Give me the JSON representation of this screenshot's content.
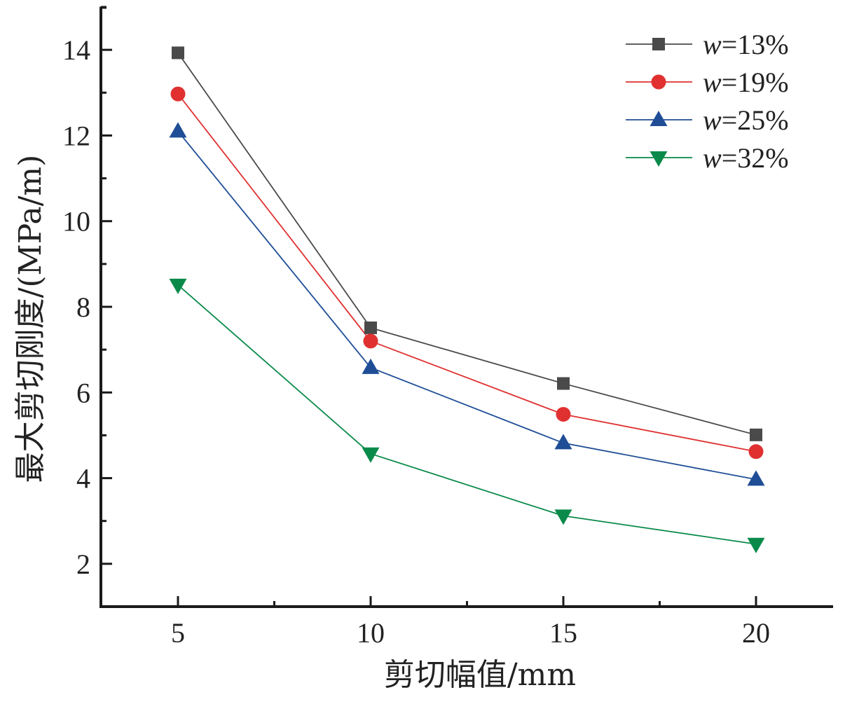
{
  "chart_data": {
    "type": "line",
    "title": "",
    "xlabel": "剪切幅值/mm",
    "ylabel": "最大剪切刚度/(MPa/m)",
    "x": [
      5,
      10,
      15,
      20
    ],
    "xlim": [
      3,
      22
    ],
    "ylim": [
      1,
      15
    ],
    "xticks": [
      5,
      10,
      15,
      20
    ],
    "xtick_labels": [
      "5",
      "10",
      "15",
      "20"
    ],
    "xminor_ticks": [
      7.5,
      12.5,
      17.5
    ],
    "yticks": [
      2,
      4,
      6,
      8,
      10,
      12,
      14
    ],
    "ytick_labels": [
      "2",
      "4",
      "6",
      "8",
      "10",
      "12",
      "14"
    ],
    "yminor_ticks": [
      3,
      5,
      7,
      9,
      11,
      13,
      15
    ],
    "grid": false,
    "legend_position": "top-right",
    "series": [
      {
        "name": "w=13%",
        "var": "w",
        "label_value": "=13%",
        "color": "#4a4a4a",
        "marker": "square",
        "values": [
          13.93,
          7.51,
          6.21,
          5.01
        ]
      },
      {
        "name": "w=19%",
        "var": "w",
        "label_value": "=19%",
        "color": "#e03030",
        "marker": "circle",
        "values": [
          12.97,
          7.2,
          5.49,
          4.62
        ]
      },
      {
        "name": "w=25%",
        "var": "w",
        "label_value": "=25%",
        "color": "#1f4e96",
        "marker": "triangle-up",
        "values": [
          12.1,
          6.58,
          4.82,
          3.97
        ]
      },
      {
        "name": "w=32%",
        "var": "w",
        "label_value": "=32%",
        "color": "#0a8a4a",
        "marker": "triangle-down",
        "values": [
          8.51,
          4.57,
          3.12,
          2.46
        ]
      }
    ]
  }
}
